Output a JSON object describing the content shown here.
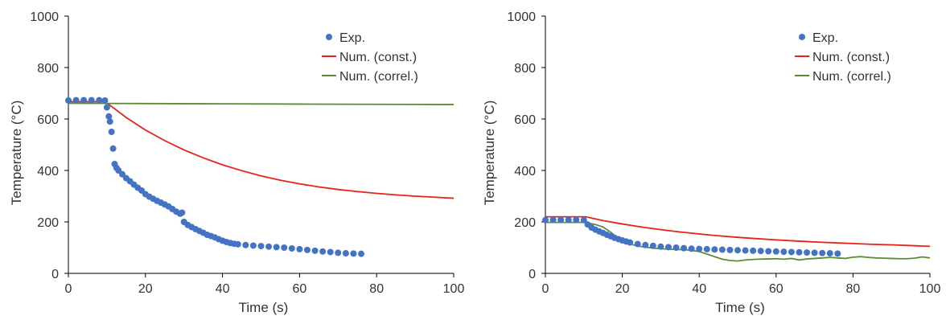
{
  "chart_data": [
    {
      "type": "line",
      "xlabel": "Time (s)",
      "ylabel": "Temperature (°C)",
      "xlim": [
        0,
        100
      ],
      "ylim": [
        0,
        1000
      ],
      "xticks": [
        "0",
        "20",
        "40",
        "60",
        "80",
        "100"
      ],
      "yticks": [
        "0",
        "200",
        "400",
        "600",
        "800",
        "1000"
      ],
      "grid": false,
      "legend_position": "top-right",
      "series": [
        {
          "name": "Exp.",
          "kind": "scatter",
          "color": "#4472C4",
          "points": [
            [
              0,
              672
            ],
            [
              2,
              673
            ],
            [
              4,
              673
            ],
            [
              6,
              673
            ],
            [
              8,
              673
            ],
            [
              9.5,
              672
            ],
            [
              10,
              645
            ],
            [
              10.5,
              610
            ],
            [
              10.8,
              590
            ],
            [
              11.2,
              550
            ],
            [
              11.6,
              485
            ],
            [
              12,
              425
            ],
            [
              12.5,
              410
            ],
            [
              13,
              400
            ],
            [
              14,
              385
            ],
            [
              15,
              370
            ],
            [
              16,
              358
            ],
            [
              17,
              345
            ],
            [
              18,
              333
            ],
            [
              19,
              322
            ],
            [
              20,
              308
            ],
            [
              21,
              298
            ],
            [
              22,
              290
            ],
            [
              23,
              282
            ],
            [
              24,
              275
            ],
            [
              25,
              268
            ],
            [
              26,
              260
            ],
            [
              27,
              250
            ],
            [
              28,
              240
            ],
            [
              29,
              232
            ],
            [
              29.5,
              236
            ],
            [
              30,
              200
            ],
            [
              31,
              188
            ],
            [
              32,
              180
            ],
            [
              33,
              172
            ],
            [
              34,
              165
            ],
            [
              35,
              158
            ],
            [
              36,
              150
            ],
            [
              37,
              145
            ],
            [
              38,
              140
            ],
            [
              39,
              133
            ],
            [
              40,
              127
            ],
            [
              41,
              122
            ],
            [
              42,
              118
            ],
            [
              43,
              115
            ],
            [
              44,
              113
            ],
            [
              46,
              110
            ],
            [
              48,
              108
            ],
            [
              50,
              106
            ],
            [
              52,
              104
            ],
            [
              54,
              102
            ],
            [
              56,
              100
            ],
            [
              58,
              97
            ],
            [
              60,
              94
            ],
            [
              62,
              91
            ],
            [
              64,
              88
            ],
            [
              66,
              85
            ],
            [
              68,
              83
            ],
            [
              70,
              80
            ],
            [
              72,
              78
            ],
            [
              74,
              77
            ],
            [
              76,
              76
            ]
          ]
        },
        {
          "name": "Num. (const.)",
          "kind": "line",
          "color": "#E8211B",
          "points": [
            [
              0,
              667
            ],
            [
              9.5,
              667
            ],
            [
              12,
              640
            ],
            [
              15,
              606
            ],
            [
              20,
              557
            ],
            [
              25,
              516
            ],
            [
              30,
              480
            ],
            [
              35,
              449
            ],
            [
              40,
              422
            ],
            [
              45,
              399
            ],
            [
              50,
              379
            ],
            [
              55,
              362
            ],
            [
              60,
              348
            ],
            [
              65,
              336
            ],
            [
              70,
              326
            ],
            [
              75,
              318
            ],
            [
              80,
              311
            ],
            [
              85,
              305
            ],
            [
              90,
              300
            ],
            [
              95,
              296
            ],
            [
              100,
              292
            ]
          ]
        },
        {
          "name": "Num. (correl.)",
          "kind": "line",
          "color": "#5B8C32",
          "points": [
            [
              0,
              661
            ],
            [
              20,
              660
            ],
            [
              40,
              659
            ],
            [
              60,
              658
            ],
            [
              80,
              657
            ],
            [
              100,
              656
            ]
          ]
        }
      ]
    },
    {
      "type": "line",
      "xlabel": "Time (s)",
      "ylabel": "Temperature (°C)",
      "xlim": [
        0,
        100
      ],
      "ylim": [
        0,
        1000
      ],
      "xticks": [
        "0",
        "20",
        "40",
        "60",
        "80",
        "100"
      ],
      "yticks": [
        "0",
        "200",
        "400",
        "600",
        "800",
        "1000"
      ],
      "grid": false,
      "legend_position": "top-right",
      "series": [
        {
          "name": "Exp.",
          "kind": "scatter",
          "color": "#4472C4",
          "points": [
            [
              0,
              207
            ],
            [
              2,
              208
            ],
            [
              4,
              208
            ],
            [
              6,
              208
            ],
            [
              8,
              208
            ],
            [
              10,
              207
            ],
            [
              11,
              190
            ],
            [
              12,
              178
            ],
            [
              13,
              170
            ],
            [
              14,
              163
            ],
            [
              15,
              157
            ],
            [
              16,
              150
            ],
            [
              17,
              144
            ],
            [
              18,
              138
            ],
            [
              19,
              133
            ],
            [
              20,
              128
            ],
            [
              21,
              124
            ],
            [
              22,
              120
            ],
            [
              24,
              114
            ],
            [
              26,
              110
            ],
            [
              28,
              107
            ],
            [
              30,
              104
            ],
            [
              32,
              102
            ],
            [
              34,
              100
            ],
            [
              36,
              98
            ],
            [
              38,
              96
            ],
            [
              40,
              95
            ],
            [
              42,
              94
            ],
            [
              44,
              93
            ],
            [
              46,
              92
            ],
            [
              48,
              91
            ],
            [
              50,
              90
            ],
            [
              52,
              89
            ],
            [
              54,
              88
            ],
            [
              56,
              87
            ],
            [
              58,
              86
            ],
            [
              60,
              85
            ],
            [
              62,
              84
            ],
            [
              64,
              83
            ],
            [
              66,
              82
            ],
            [
              68,
              81
            ],
            [
              70,
              80
            ],
            [
              72,
              79
            ],
            [
              74,
              78
            ],
            [
              76,
              77
            ]
          ]
        },
        {
          "name": "Num. (const.)",
          "kind": "line",
          "color": "#E8211B",
          "points": [
            [
              0,
              220
            ],
            [
              10.5,
              220
            ],
            [
              15,
              205
            ],
            [
              20,
              192
            ],
            [
              25,
              180
            ],
            [
              30,
              170
            ],
            [
              35,
              161
            ],
            [
              40,
              153
            ],
            [
              45,
              146
            ],
            [
              50,
              140
            ],
            [
              55,
              135
            ],
            [
              60,
              130
            ],
            [
              65,
              126
            ],
            [
              70,
              122
            ],
            [
              75,
              119
            ],
            [
              80,
              116
            ],
            [
              85,
              113
            ],
            [
              90,
              111
            ],
            [
              95,
              108
            ],
            [
              100,
              105
            ]
          ]
        },
        {
          "name": "Num. (correl.)",
          "kind": "line",
          "color": "#5B8C32",
          "points": [
            [
              0,
              198
            ],
            [
              10,
              198
            ],
            [
              11,
              196
            ],
            [
              13,
              190
            ],
            [
              15,
              180
            ],
            [
              17,
              160
            ],
            [
              19,
              135
            ],
            [
              21,
              120
            ],
            [
              23,
              110
            ],
            [
              25,
              104
            ],
            [
              28,
              98
            ],
            [
              31,
              95
            ],
            [
              34,
              93
            ],
            [
              37,
              91
            ],
            [
              40,
              85
            ],
            [
              42,
              75
            ],
            [
              44,
              65
            ],
            [
              46,
              55
            ],
            [
              48,
              50
            ],
            [
              50,
              48
            ],
            [
              52,
              52
            ],
            [
              55,
              55
            ],
            [
              58,
              56
            ],
            [
              60,
              57
            ],
            [
              62,
              55
            ],
            [
              64,
              58
            ],
            [
              66,
              52
            ],
            [
              68,
              56
            ],
            [
              70,
              58
            ],
            [
              72,
              60
            ],
            [
              74,
              62
            ],
            [
              76,
              60
            ],
            [
              78,
              58
            ],
            [
              80,
              63
            ],
            [
              82,
              65
            ],
            [
              84,
              62
            ],
            [
              86,
              60
            ],
            [
              88,
              59
            ],
            [
              90,
              58
            ],
            [
              92,
              57
            ],
            [
              94,
              57
            ],
            [
              96,
              59
            ],
            [
              98,
              64
            ],
            [
              100,
              60
            ]
          ]
        }
      ]
    }
  ]
}
